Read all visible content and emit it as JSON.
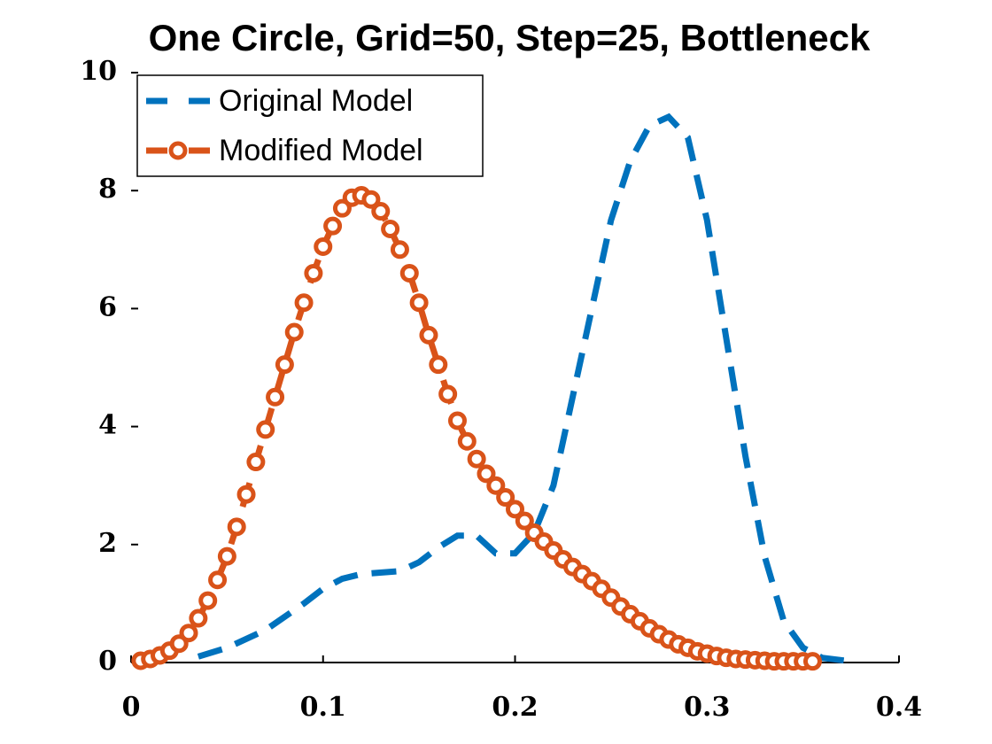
{
  "chart_data": {
    "type": "line",
    "title": "One Circle, Grid=50, Step=25, Bottleneck",
    "xlim": [
      0,
      0.4
    ],
    "xticks": [
      0,
      0.1,
      0.2,
      0.3,
      0.4
    ],
    "ylim": [
      0,
      10
    ],
    "yticks": [
      0,
      2,
      4,
      6,
      8,
      10
    ],
    "legend": "upper left",
    "series": [
      {
        "name": "Original Model",
        "color": "#0072bd",
        "style": "dashed",
        "x": [
          0.035,
          0.05,
          0.07,
          0.09,
          0.1,
          0.11,
          0.12,
          0.14,
          0.15,
          0.16,
          0.17,
          0.18,
          0.19,
          0.2,
          0.21,
          0.22,
          0.23,
          0.24,
          0.25,
          0.26,
          0.27,
          0.28,
          0.29,
          0.3,
          0.31,
          0.32,
          0.33,
          0.34,
          0.35,
          0.36,
          0.375
        ],
        "values": [
          0.1,
          0.25,
          0.55,
          1.0,
          1.25,
          1.42,
          1.5,
          1.55,
          1.7,
          1.95,
          2.15,
          2.15,
          1.85,
          1.85,
          2.2,
          3.0,
          4.5,
          6.0,
          7.5,
          8.5,
          9.1,
          9.25,
          8.9,
          7.5,
          5.5,
          3.5,
          1.8,
          0.7,
          0.25,
          0.08,
          0.02
        ]
      },
      {
        "name": "Modified Model",
        "color": "#d95319",
        "style": "dashed",
        "marker": "circle",
        "x": [
          0.005,
          0.01,
          0.015,
          0.02,
          0.025,
          0.03,
          0.035,
          0.04,
          0.045,
          0.05,
          0.055,
          0.06,
          0.065,
          0.07,
          0.075,
          0.08,
          0.085,
          0.09,
          0.095,
          0.1,
          0.105,
          0.11,
          0.115,
          0.12,
          0.125,
          0.13,
          0.135,
          0.14,
          0.145,
          0.15,
          0.155,
          0.16,
          0.165,
          0.17,
          0.175,
          0.18,
          0.185,
          0.19,
          0.195,
          0.2,
          0.205,
          0.21,
          0.215,
          0.22,
          0.225,
          0.23,
          0.235,
          0.24,
          0.245,
          0.25,
          0.255,
          0.26,
          0.265,
          0.27,
          0.275,
          0.28,
          0.285,
          0.29,
          0.295,
          0.3,
          0.305,
          0.31,
          0.315,
          0.32,
          0.325,
          0.33,
          0.335,
          0.34,
          0.345,
          0.35,
          0.355
        ],
        "values": [
          0.03,
          0.06,
          0.12,
          0.2,
          0.32,
          0.5,
          0.75,
          1.05,
          1.4,
          1.8,
          2.3,
          2.85,
          3.4,
          3.95,
          4.5,
          5.05,
          5.6,
          6.1,
          6.6,
          7.05,
          7.4,
          7.7,
          7.88,
          7.92,
          7.85,
          7.65,
          7.35,
          7.0,
          6.6,
          6.1,
          5.55,
          5.05,
          4.55,
          4.1,
          3.75,
          3.45,
          3.2,
          3.0,
          2.8,
          2.6,
          2.4,
          2.2,
          2.05,
          1.9,
          1.75,
          1.62,
          1.5,
          1.38,
          1.25,
          1.1,
          0.95,
          0.82,
          0.7,
          0.58,
          0.48,
          0.39,
          0.31,
          0.25,
          0.19,
          0.15,
          0.11,
          0.08,
          0.06,
          0.05,
          0.04,
          0.03,
          0.02,
          0.02,
          0.02,
          0.02,
          0.02
        ]
      }
    ]
  }
}
